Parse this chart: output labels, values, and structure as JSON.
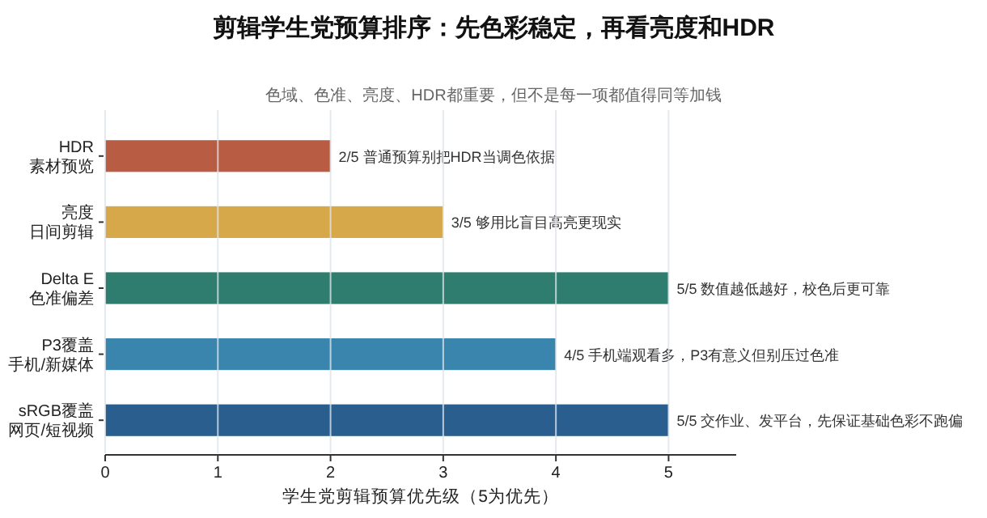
{
  "chart_data": {
    "type": "bar",
    "orientation": "horizontal",
    "title": "剪辑学生党预算排序：先色彩稳定，再看亮度和HDR",
    "subtitle": "色域、色准、亮度、HDR都重要，但不是每一项都值得同等加钱",
    "xlabel": "学生党剪辑预算优先级（5为优先）",
    "categories": [
      "HDR 素材预览",
      "亮度日间剪辑",
      "Delta E 色准偏差",
      "P3覆盖手机/新媒体",
      "sRGB覆盖网页/短视频"
    ],
    "values": [
      2,
      3,
      5,
      4,
      5
    ],
    "colors": [
      "#b85c43",
      "#d6a84a",
      "#2e7d6e",
      "#3a85ae",
      "#2a5e8f"
    ],
    "value_labels": [
      "2/5  普通预算别把HDR当调色依据",
      "3/5  够用比盲目高亮更现实",
      "5/5  数值越低越好，校色后更可靠",
      "4/5  手机端观看多，P3有意义但别压过色准",
      "5/5  交作业、发平台，先保证基础色彩不跑偏"
    ],
    "xlim": [
      0,
      5.6
    ],
    "xticks": [
      0,
      1,
      2,
      3,
      4,
      5
    ],
    "grid": "x"
  }
}
